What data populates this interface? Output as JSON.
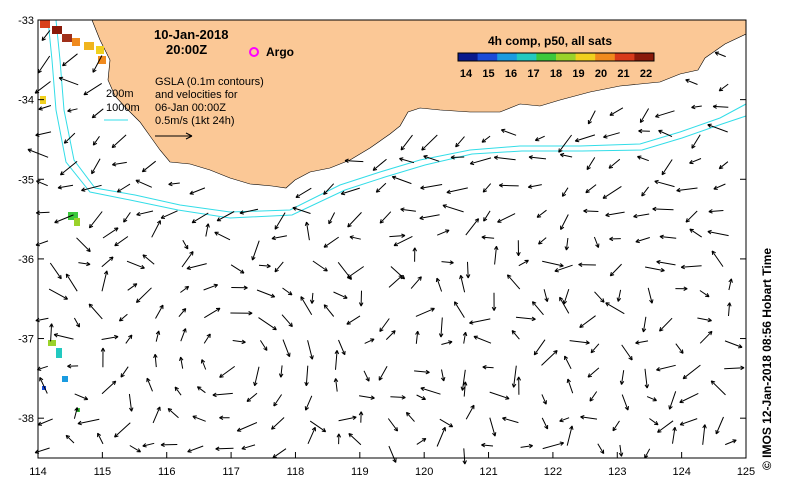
{
  "header": {
    "date": "10-Jan-2018",
    "time": "20:00Z"
  },
  "legend": {
    "argo_label": "Argo",
    "gsla_lines": [
      "GSLA (0.1m contours)",
      "and velocities for",
      "06-Jan 00:00Z",
      "0.5m/s (1kt 24h)"
    ],
    "depth_labels": [
      "200m",
      "1000m"
    ]
  },
  "colorbar": {
    "title": "4h comp, p50, all sats",
    "ticks": [
      "14",
      "15",
      "16",
      "17",
      "18",
      "19",
      "20",
      "21",
      "22"
    ],
    "colors": [
      "#0a1a8c",
      "#1a4bd8",
      "#1a9be0",
      "#22c9c0",
      "#3cc83c",
      "#9ad22a",
      "#f0d01e",
      "#f08a1e",
      "#d83a1a",
      "#8a1a0a"
    ]
  },
  "axes": {
    "x_ticks": [
      "114",
      "115",
      "116",
      "117",
      "118",
      "119",
      "120",
      "121",
      "122",
      "123",
      "124",
      "125"
    ],
    "y_ticks": [
      "-33",
      "-34",
      "-35",
      "-36",
      "-37",
      "-38"
    ],
    "xlim": [
      114,
      125
    ],
    "ylim": [
      -38.5,
      -33
    ]
  },
  "colors": {
    "land": "#fbc896",
    "contour": "#33dde8",
    "argo": "#ff00ff"
  },
  "credit": "© IMOS 12-Jan-2018 08:56 Hobart Time"
}
